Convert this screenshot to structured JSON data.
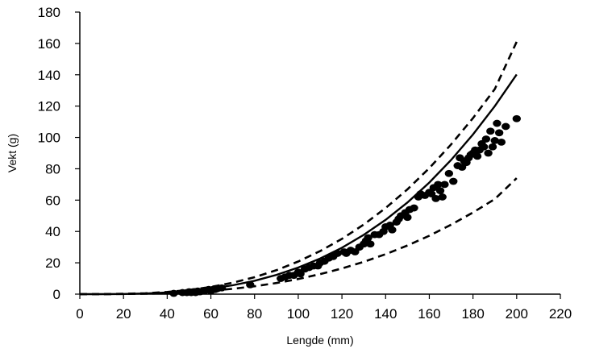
{
  "chart_data": {
    "type": "scatter",
    "xlabel": "Lengde (mm)",
    "ylabel": "Vekt (g)",
    "xlim": [
      0,
      220
    ],
    "ylim": [
      0,
      180
    ],
    "xticks": [
      0,
      20,
      40,
      60,
      80,
      100,
      120,
      140,
      160,
      180,
      200,
      220
    ],
    "yticks": [
      0,
      20,
      40,
      60,
      80,
      100,
      120,
      140,
      160,
      180
    ],
    "grid": false,
    "legend": "none",
    "series": [
      {
        "kind": "points",
        "color": "#000000",
        "points": [
          [
            43,
            0.5
          ],
          [
            47,
            1
          ],
          [
            49,
            1
          ],
          [
            50,
            1.5
          ],
          [
            51,
            1
          ],
          [
            52,
            1.5
          ],
          [
            53,
            1
          ],
          [
            54,
            2
          ],
          [
            55,
            1.5
          ],
          [
            57,
            2
          ],
          [
            59,
            3
          ],
          [
            60,
            2
          ],
          [
            61,
            3
          ],
          [
            62,
            3
          ],
          [
            63,
            3.5
          ],
          [
            65,
            4
          ],
          [
            78,
            6
          ],
          [
            92,
            10
          ],
          [
            94,
            11
          ],
          [
            96,
            12
          ],
          [
            98,
            12
          ],
          [
            100,
            14
          ],
          [
            101,
            13
          ],
          [
            103,
            16
          ],
          [
            105,
            17
          ],
          [
            107,
            18
          ],
          [
            109,
            18
          ],
          [
            110,
            20
          ],
          [
            112,
            21
          ],
          [
            114,
            23
          ],
          [
            116,
            24
          ],
          [
            118,
            26
          ],
          [
            121,
            27
          ],
          [
            122,
            26
          ],
          [
            124,
            28
          ],
          [
            126,
            27
          ],
          [
            128,
            30
          ],
          [
            130,
            32
          ],
          [
            131,
            34
          ],
          [
            132,
            36
          ],
          [
            133,
            32
          ],
          [
            135,
            38
          ],
          [
            137,
            38
          ],
          [
            139,
            40
          ],
          [
            140,
            43
          ],
          [
            142,
            44
          ],
          [
            143,
            41
          ],
          [
            145,
            46
          ],
          [
            146,
            48
          ],
          [
            147,
            50
          ],
          [
            149,
            52
          ],
          [
            150,
            49
          ],
          [
            151,
            54
          ],
          [
            153,
            55
          ],
          [
            155,
            62
          ],
          [
            156,
            64
          ],
          [
            158,
            63
          ],
          [
            160,
            65
          ],
          [
            161,
            64
          ],
          [
            162,
            68
          ],
          [
            163,
            61
          ],
          [
            164,
            70
          ],
          [
            165,
            66
          ],
          [
            166,
            62
          ],
          [
            167,
            70
          ],
          [
            169,
            77
          ],
          [
            171,
            72
          ],
          [
            173,
            82
          ],
          [
            174,
            87
          ],
          [
            175,
            81
          ],
          [
            176,
            85
          ],
          [
            177,
            84
          ],
          [
            178,
            87
          ],
          [
            179,
            89
          ],
          [
            180,
            90
          ],
          [
            181,
            92
          ],
          [
            182,
            88
          ],
          [
            183,
            92
          ],
          [
            184,
            96
          ],
          [
            185,
            94
          ],
          [
            186,
            99
          ],
          [
            187,
            90
          ],
          [
            188,
            104
          ],
          [
            189,
            94
          ],
          [
            190,
            98
          ],
          [
            191,
            109
          ],
          [
            192,
            103
          ],
          [
            193,
            97
          ],
          [
            195,
            107
          ],
          [
            200,
            112
          ]
        ]
      },
      {
        "kind": "curve",
        "style": "solid",
        "color": "#000000",
        "x": [
          0,
          10,
          20,
          30,
          40,
          50,
          60,
          70,
          80,
          90,
          100,
          110,
          120,
          130,
          140,
          150,
          160,
          170,
          180,
          190,
          200
        ],
        "y": [
          0,
          0.01,
          0.12,
          0.42,
          1.01,
          2.01,
          3.53,
          5.68,
          8.56,
          12.29,
          16.97,
          22.72,
          29.64,
          37.84,
          47.43,
          58.52,
          71.22,
          85.63,
          101.86,
          120.0,
          140.2
        ]
      },
      {
        "kind": "curve",
        "style": "dashed",
        "color": "#000000",
        "x": [
          0,
          10,
          20,
          30,
          40,
          50,
          60,
          70,
          80,
          90,
          100,
          110,
          120,
          130,
          140,
          150,
          160,
          170,
          180,
          190,
          200
        ],
        "y": [
          0,
          0.02,
          0.18,
          0.58,
          1.37,
          2.66,
          4.6,
          7.28,
          10.8,
          15.28,
          20.81,
          27.45,
          35.3,
          44.44,
          54.96,
          66.92,
          80.43,
          95.55,
          112.34,
          130.91,
          161
        ]
      },
      {
        "kind": "curve",
        "style": "dashed",
        "color": "#000000",
        "x": [
          0,
          10,
          20,
          30,
          40,
          50,
          60,
          70,
          80,
          90,
          100,
          110,
          120,
          130,
          140,
          150,
          160,
          170,
          180,
          190,
          200
        ],
        "y": [
          0,
          0.01,
          0.08,
          0.27,
          0.64,
          1.24,
          2.14,
          3.39,
          5.02,
          7.09,
          9.66,
          12.74,
          16.38,
          20.62,
          25.5,
          31.05,
          37.31,
          44.31,
          52.1,
          60.7,
          74
        ]
      }
    ]
  }
}
